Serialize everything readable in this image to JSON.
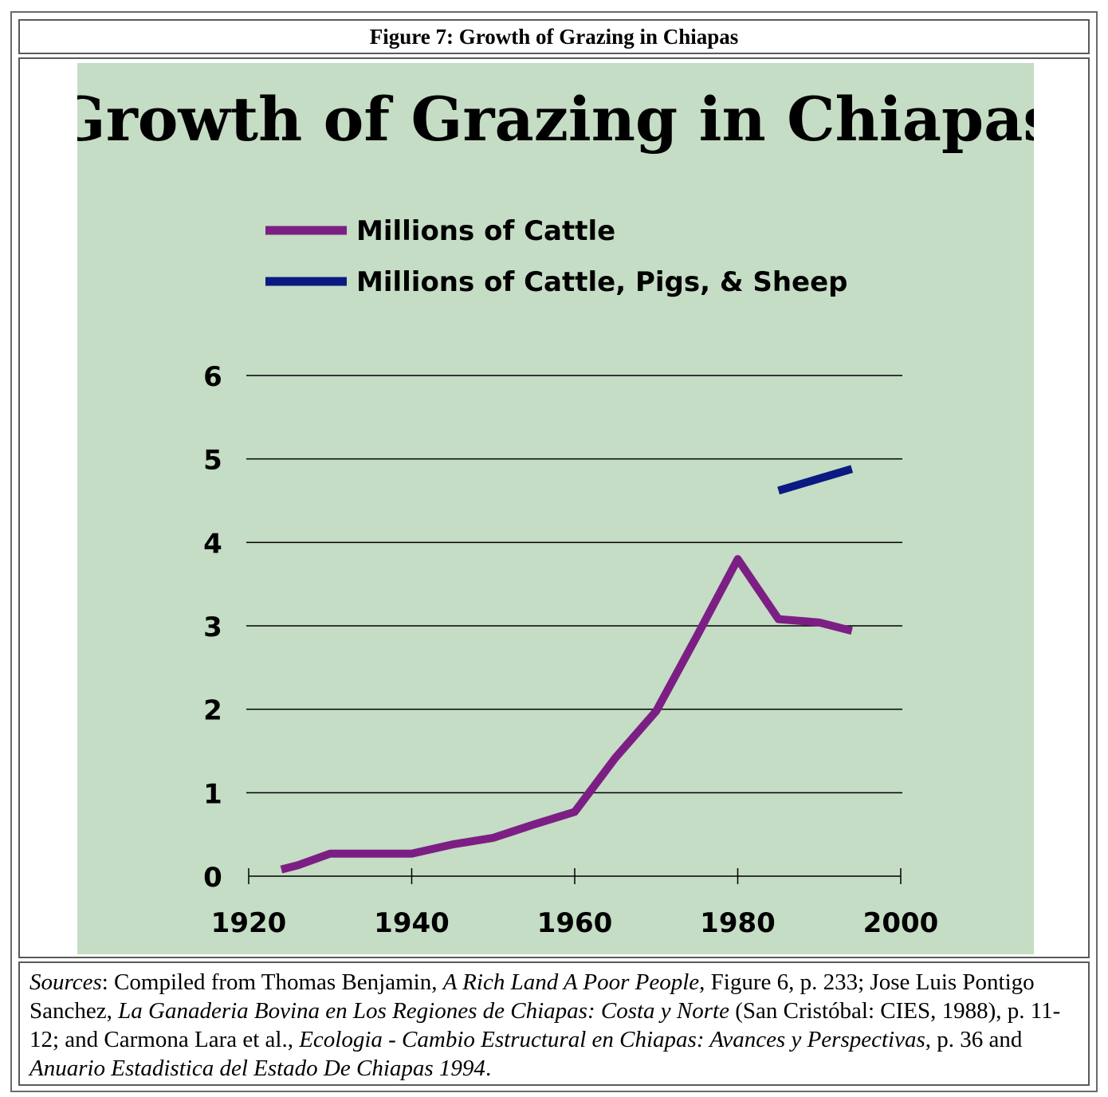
{
  "header": {
    "caption": "Figure 7: Growth of Grazing in Chiapas"
  },
  "chart_data": {
    "type": "line",
    "title": "Growth of Grazing in Chiapas",
    "xlabel": "",
    "ylabel": "",
    "xlim": [
      1920,
      2000
    ],
    "ylim": [
      0,
      6
    ],
    "x_ticks": [
      "1920",
      "1940",
      "1960",
      "1980",
      "2000"
    ],
    "y_ticks": [
      "0",
      "1",
      "2",
      "3",
      "4",
      "5",
      "6"
    ],
    "grid": "horizontal",
    "legend_position": "top-left",
    "background_color": "#c5dcc5",
    "series": [
      {
        "name": "Millions of Cattle",
        "color": "#7c1f84",
        "points": [
          {
            "x": 1924,
            "y": 0.08
          },
          {
            "x": 1926,
            "y": 0.13
          },
          {
            "x": 1930,
            "y": 0.27
          },
          {
            "x": 1940,
            "y": 0.27
          },
          {
            "x": 1945,
            "y": 0.38
          },
          {
            "x": 1950,
            "y": 0.46
          },
          {
            "x": 1955,
            "y": 0.62
          },
          {
            "x": 1960,
            "y": 0.77
          },
          {
            "x": 1965,
            "y": 1.42
          },
          {
            "x": 1970,
            "y": 1.98
          },
          {
            "x": 1975,
            "y": 2.88
          },
          {
            "x": 1980,
            "y": 3.8
          },
          {
            "x": 1985,
            "y": 3.08
          },
          {
            "x": 1990,
            "y": 3.04
          },
          {
            "x": 1994,
            "y": 2.94
          }
        ]
      },
      {
        "name": "Millions of Cattle, Pigs, & Sheep",
        "color": "#0a1a82",
        "points": [
          {
            "x": 1985,
            "y": 4.62
          },
          {
            "x": 1994,
            "y": 4.88
          }
        ]
      }
    ]
  },
  "sources": {
    "label": "Sources",
    "t1": ": Compiled from Thomas Benjamin, ",
    "i1": "A Rich Land A Poor People",
    "t2": ", Figure 6, p. 233; Jose Luis Pontigo Sanchez, ",
    "i2": "La Ganaderia Bovina en Los Regiones de Chiapas: Costa y Norte",
    "t3": " (San Cristóbal: CIES, 1988), p. 11-12; and Carmona Lara et al., ",
    "i3": "Ecologia - Cambio Estructural en Chiapas: Avances y Perspectivas",
    "t4": ", p. 36 and ",
    "i4": "Anuario Estadistica del Estado De Chiapas 1994",
    "t5": "."
  }
}
